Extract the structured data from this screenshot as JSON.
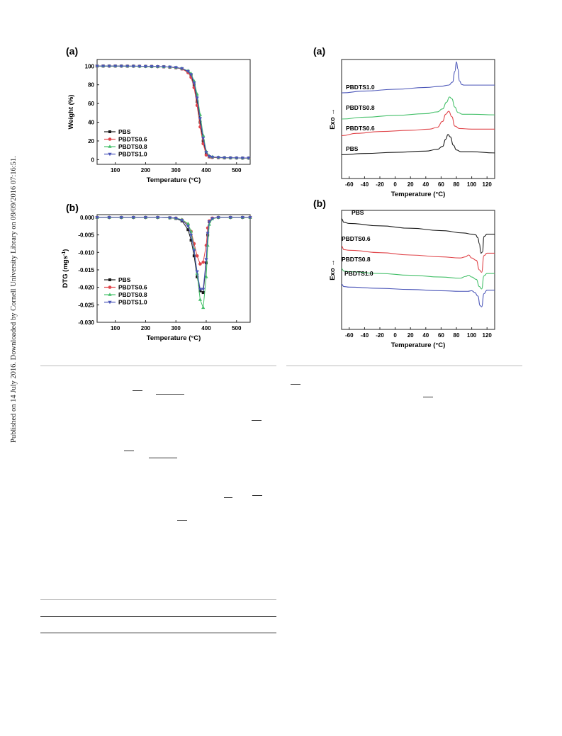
{
  "side_note": "Published on 14 July 2016. Downloaded by Cornell University Library on 09/09/2016 07:16:51.",
  "figures": {
    "left": {
      "tga": {
        "label": "(a)"
      },
      "dtg": {
        "label": "(b)"
      }
    },
    "right": {
      "dsc_cool": {
        "label": "(a)"
      },
      "dsc_heat": {
        "label": "(b)"
      }
    }
  },
  "colors": {
    "PBS": "#1a1a1a",
    "PBDTS0.6": "#e0454a",
    "PBDTS0.8": "#45c06a",
    "PBDTS1.0": "#4a55b8"
  },
  "chart_data": [
    {
      "type": "line",
      "panel": "(a)",
      "xlabel": "Temperature (°C)",
      "ylabel": "Weight (%)",
      "xlim": [
        40,
        545
      ],
      "ylim": [
        -5,
        107
      ],
      "xticks": [
        100,
        200,
        300,
        400,
        500
      ],
      "yticks": [
        0,
        20,
        40,
        60,
        80,
        100
      ],
      "legend": "bottom-left",
      "x": [
        40,
        60,
        80,
        100,
        120,
        140,
        160,
        180,
        200,
        220,
        240,
        260,
        280,
        300,
        320,
        340,
        350,
        360,
        370,
        380,
        390,
        400,
        410,
        420,
        440,
        460,
        480,
        500,
        520,
        540
      ],
      "series": [
        {
          "name": "PBS",
          "values": [
            100,
            100,
            100,
            100,
            100,
            99.9,
            99.9,
            99.8,
            99.7,
            99.6,
            99.4,
            99.2,
            98.8,
            98.2,
            97,
            94,
            90,
            80,
            62,
            40,
            20,
            6,
            3,
            2.5,
            2.2,
            2,
            1.9,
            1.8,
            1.7,
            1.7
          ]
        },
        {
          "name": "PBDTS0.6",
          "values": [
            100,
            100,
            100,
            100,
            100,
            99.9,
            99.9,
            99.8,
            99.7,
            99.6,
            99.4,
            99.2,
            98.8,
            98.2,
            97,
            93,
            88,
            77,
            58,
            35,
            17,
            5,
            3,
            2.5,
            2.2,
            2,
            1.9,
            1.8,
            1.7,
            1.7
          ]
        },
        {
          "name": "PBDTS0.8",
          "values": [
            100,
            100,
            100,
            100,
            100,
            99.9,
            99.9,
            99.8,
            99.7,
            99.6,
            99.5,
            99.3,
            99,
            98.5,
            97.5,
            95,
            92,
            84,
            70,
            48,
            26,
            9,
            4,
            3,
            2.5,
            2.2,
            2,
            1.9,
            1.8,
            1.8
          ]
        },
        {
          "name": "PBDTS1.0",
          "values": [
            100,
            100,
            100,
            100,
            100,
            99.9,
            99.9,
            99.8,
            99.7,
            99.6,
            99.5,
            99.3,
            99,
            98.5,
            97.4,
            94.5,
            91,
            82,
            66,
            44,
            23,
            8,
            3.5,
            2.8,
            2.4,
            2.1,
            2,
            1.9,
            1.8,
            1.8
          ]
        }
      ]
    },
    {
      "type": "line",
      "panel": "(b)",
      "xlabel": "Temperature (°C)",
      "ylabel": "DTG (mgs-1)",
      "xlim": [
        40,
        545
      ],
      "ylim": [
        -0.03,
        0.0008
      ],
      "xticks": [
        100,
        200,
        300,
        400,
        500
      ],
      "yticks": [
        0.0,
        -0.005,
        -0.01,
        -0.015,
        -0.02,
        -0.025,
        -0.03
      ],
      "ytick_labels": [
        "0.000",
        "-0.005",
        "-0.010",
        "-0.015",
        "-0.020",
        "-0.025",
        "-0.030"
      ],
      "legend": "bottom-left",
      "x": [
        40,
        80,
        120,
        160,
        200,
        240,
        280,
        300,
        320,
        340,
        350,
        360,
        370,
        380,
        390,
        400,
        405,
        410,
        420,
        440,
        480,
        520,
        545
      ],
      "series": [
        {
          "name": "PBS",
          "values": [
            0,
            0,
            0,
            0,
            0,
            0,
            -0.0001,
            -0.0003,
            -0.001,
            -0.0035,
            -0.0065,
            -0.011,
            -0.017,
            -0.021,
            -0.0215,
            -0.013,
            -0.005,
            -0.0012,
            -0.0003,
            0,
            0,
            0,
            0
          ]
        },
        {
          "name": "PBDTS0.6",
          "values": [
            0,
            0,
            0,
            0,
            0,
            0,
            -0.0001,
            -0.0002,
            -0.0007,
            -0.002,
            -0.004,
            -0.0075,
            -0.011,
            -0.0133,
            -0.0128,
            -0.008,
            -0.003,
            -0.001,
            -0.0002,
            0,
            0,
            0,
            0
          ]
        },
        {
          "name": "PBDTS0.8",
          "values": [
            0,
            0,
            0,
            0,
            0,
            0,
            -0.0001,
            -0.0002,
            -0.0006,
            -0.0018,
            -0.004,
            -0.009,
            -0.016,
            -0.0235,
            -0.0258,
            -0.017,
            -0.008,
            -0.002,
            -0.0004,
            0,
            0,
            0,
            0
          ]
        },
        {
          "name": "PBDTS1.0",
          "values": [
            0,
            0,
            0,
            0,
            0,
            0,
            -0.0001,
            -0.0002,
            -0.0008,
            -0.0025,
            -0.005,
            -0.0095,
            -0.0155,
            -0.0205,
            -0.0205,
            -0.012,
            -0.0045,
            -0.0012,
            -0.0003,
            0,
            0,
            0,
            0
          ]
        }
      ]
    },
    {
      "type": "line",
      "panel": "(a)",
      "xlabel": "Temperature (°C)",
      "ylabel": "Exo →",
      "xlim": [
        -70,
        130
      ],
      "ylim": [
        0,
        1
      ],
      "xticks": [
        -60,
        -40,
        -20,
        0,
        20,
        40,
        60,
        80,
        100,
        120
      ],
      "series": [
        {
          "name": "PBDTS1.0",
          "x": [
            -70,
            -40,
            0,
            40,
            60,
            70,
            75,
            78,
            80,
            82,
            84,
            87,
            90,
            100,
            130
          ],
          "values": [
            0.72,
            0.735,
            0.75,
            0.765,
            0.775,
            0.785,
            0.81,
            0.9,
            0.98,
            0.92,
            0.82,
            0.79,
            0.785,
            0.785,
            0.785
          ]
        },
        {
          "name": "PBDTS0.8",
          "x": [
            -70,
            -40,
            0,
            40,
            55,
            62,
            67,
            71,
            74,
            78,
            82,
            88,
            100,
            130
          ],
          "values": [
            0.5,
            0.515,
            0.53,
            0.545,
            0.56,
            0.585,
            0.64,
            0.685,
            0.67,
            0.6,
            0.555,
            0.54,
            0.54,
            0.535
          ]
        },
        {
          "name": "PBDTS0.6",
          "x": [
            -70,
            -50,
            -20,
            20,
            45,
            55,
            62,
            66,
            70,
            74,
            78,
            84,
            100,
            130
          ],
          "values": [
            0.36,
            0.38,
            0.395,
            0.405,
            0.415,
            0.43,
            0.48,
            0.54,
            0.565,
            0.52,
            0.44,
            0.42,
            0.415,
            0.415
          ]
        },
        {
          "name": "PBS",
          "x": [
            -70,
            -40,
            0,
            40,
            55,
            62,
            66,
            69,
            72,
            76,
            80,
            86,
            100,
            130
          ],
          "values": [
            0.2,
            0.21,
            0.22,
            0.23,
            0.245,
            0.27,
            0.33,
            0.37,
            0.35,
            0.28,
            0.24,
            0.225,
            0.225,
            0.215
          ]
        }
      ],
      "curve_labels": [
        "PBDTS1.0",
        "PBDTS0.8",
        "PBDTS0.6",
        "PBS"
      ]
    },
    {
      "type": "line",
      "panel": "(b)",
      "xlabel": "Temperature (°C)",
      "ylabel": "Exo →",
      "xlim": [
        -70,
        130
      ],
      "ylim": [
        0,
        1
      ],
      "xticks": [
        -60,
        -40,
        -20,
        0,
        20,
        40,
        60,
        80,
        100,
        120
      ],
      "series": [
        {
          "name": "PBS",
          "x": [
            -70,
            -67,
            -60,
            -20,
            20,
            60,
            90,
            100,
            105,
            108,
            110,
            112,
            114,
            116,
            120,
            130
          ],
          "values": [
            0.93,
            0.9,
            0.89,
            0.87,
            0.85,
            0.83,
            0.81,
            0.8,
            0.795,
            0.77,
            0.72,
            0.64,
            0.65,
            0.78,
            0.8,
            0.8
          ]
        },
        {
          "name": "PBDTS0.6",
          "x": [
            -70,
            -67,
            -60,
            -20,
            20,
            60,
            85,
            92,
            96,
            100,
            106,
            110,
            113,
            116,
            120,
            130
          ],
          "values": [
            0.7,
            0.67,
            0.665,
            0.645,
            0.625,
            0.61,
            0.6,
            0.61,
            0.625,
            0.6,
            0.58,
            0.5,
            0.48,
            0.62,
            0.64,
            0.64
          ]
        },
        {
          "name": "PBDTS0.8",
          "x": [
            -70,
            -67,
            -60,
            -20,
            20,
            60,
            85,
            92,
            96,
            100,
            106,
            110,
            113,
            116,
            120,
            130
          ],
          "values": [
            0.51,
            0.49,
            0.485,
            0.47,
            0.455,
            0.44,
            0.43,
            0.445,
            0.455,
            0.44,
            0.42,
            0.36,
            0.34,
            0.45,
            0.47,
            0.47
          ]
        },
        {
          "name": "PBDTS1.0",
          "x": [
            -70,
            -67,
            -60,
            -20,
            20,
            60,
            85,
            95,
            100,
            104,
            108,
            111,
            113,
            116,
            120,
            130
          ],
          "values": [
            0.38,
            0.36,
            0.355,
            0.345,
            0.335,
            0.325,
            0.32,
            0.32,
            0.325,
            0.31,
            0.28,
            0.2,
            0.19,
            0.3,
            0.33,
            0.33
          ]
        }
      ],
      "curve_labels": [
        "PBS",
        "PBDTS0.6",
        "PBDTS0.8",
        "PBDTS1.0"
      ]
    }
  ]
}
